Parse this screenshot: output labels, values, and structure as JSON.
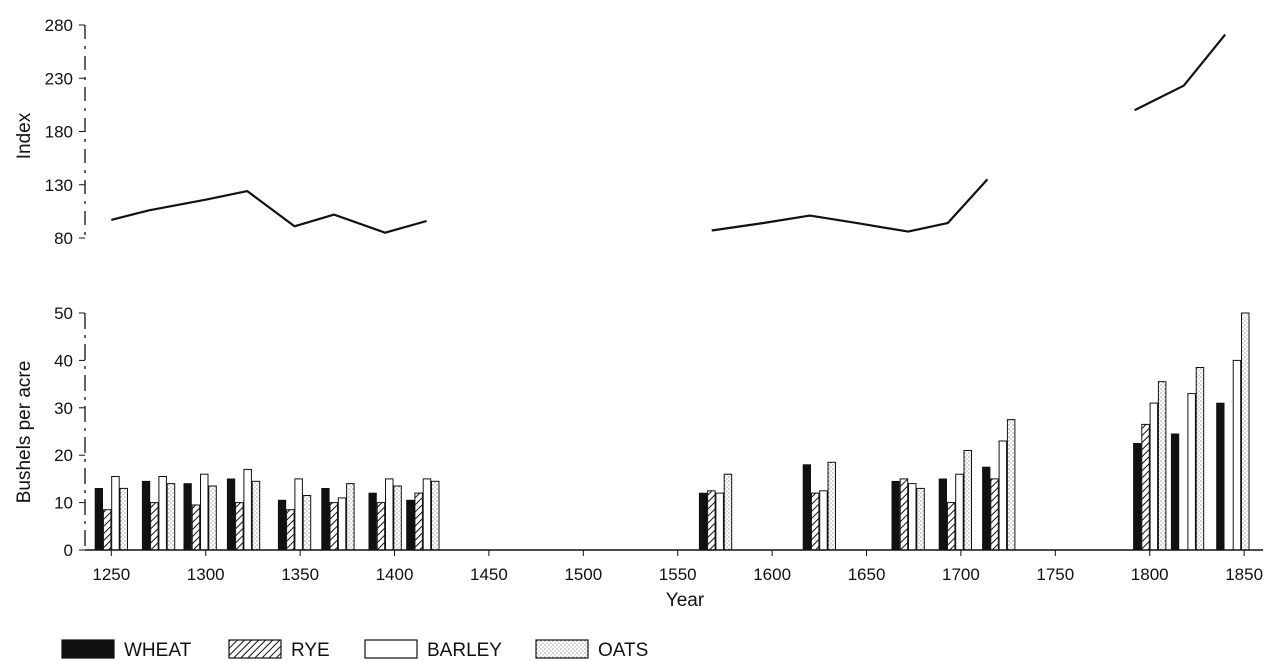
{
  "chart_data": [
    {
      "type": "line",
      "ylabel": "Index",
      "ylim": [
        80,
        280
      ],
      "yticks": [
        80,
        130,
        180,
        230,
        280
      ],
      "xlim": [
        1235,
        1860
      ],
      "grid": false,
      "segments": [
        {
          "x": [
            1250,
            1270,
            1300,
            1322,
            1347,
            1368,
            1395,
            1417
          ],
          "y": [
            97,
            106,
            116,
            124,
            91,
            102,
            85,
            96
          ]
        },
        {
          "x": [
            1568,
            1595,
            1620,
            1645,
            1672,
            1693,
            1714
          ],
          "y": [
            87,
            94,
            101,
            94,
            86,
            94,
            135
          ]
        },
        {
          "x": [
            1792,
            1818,
            1840
          ],
          "y": [
            200,
            223,
            271
          ]
        }
      ]
    },
    {
      "type": "bar",
      "xlabel": "Year",
      "ylabel": "Bushels per acre",
      "ylim": [
        0,
        50
      ],
      "yticks": [
        0,
        10,
        20,
        30,
        40,
        50
      ],
      "xticks": [
        1250,
        1300,
        1350,
        1400,
        1450,
        1500,
        1550,
        1600,
        1650,
        1700,
        1750,
        1800,
        1850
      ],
      "xlim": [
        1235,
        1860
      ],
      "grid": false,
      "legend_position": "bottom",
      "groups": [
        1250,
        1275,
        1297,
        1320,
        1347,
        1370,
        1395,
        1415,
        1570,
        1625,
        1672,
        1697,
        1720,
        1800,
        1820,
        1844
      ],
      "series": [
        {
          "name": "WHEAT",
          "pattern": "solid",
          "values": [
            13,
            14.5,
            14,
            15,
            10.5,
            13,
            12,
            10.5,
            12,
            18,
            14.5,
            15,
            17.5,
            22.5,
            24.5,
            31
          ]
        },
        {
          "name": "RYE",
          "pattern": "diagonal",
          "values": [
            8.5,
            10,
            9.5,
            10,
            8.5,
            10,
            10,
            12,
            12.5,
            12,
            15,
            10,
            15,
            26.5,
            null,
            null
          ]
        },
        {
          "name": "BARLEY",
          "pattern": "open",
          "values": [
            15.5,
            15.5,
            16,
            17,
            15,
            11,
            15,
            15,
            12,
            12.5,
            14,
            16,
            23,
            31,
            33,
            40
          ]
        },
        {
          "name": "OATS",
          "pattern": "dotted",
          "values": [
            13,
            14,
            13.5,
            14.5,
            11.5,
            14,
            13.5,
            14.5,
            16,
            18.5,
            13,
            21,
            27.5,
            35.5,
            38.5,
            50
          ]
        }
      ]
    }
  ],
  "colors": {
    "ink": "#111111",
    "background": "#ffffff"
  }
}
